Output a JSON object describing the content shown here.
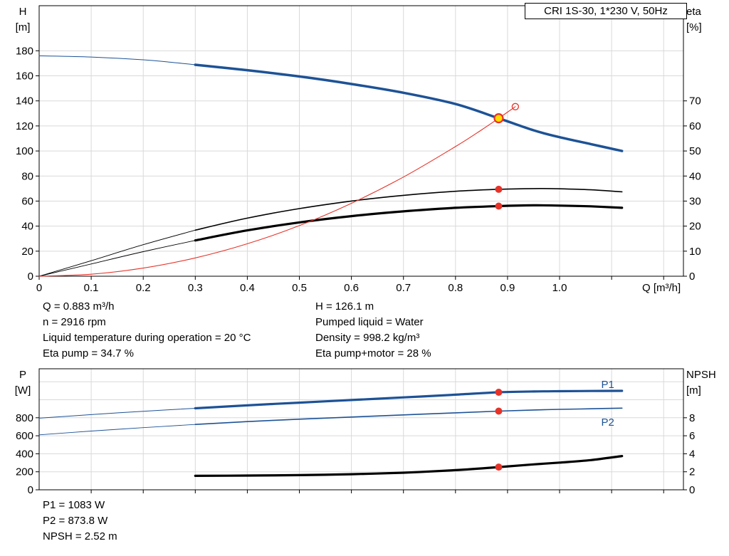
{
  "title_box": {
    "label": "CRI 1S-30, 1*230 V, 50Hz"
  },
  "info_panel": {
    "left": [
      "Q = 0.883 m³/h",
      "n = 2916 rpm",
      "Liquid temperature during operation = 20 °C",
      "Eta pump = 34.7 %"
    ],
    "right": [
      "H = 126.1 m",
      "Pumped liquid = Water",
      "Density = 998.2 kg/m³",
      "Eta pump+motor = 28 %"
    ]
  },
  "results_panel": [
    "P1 = 1083 W",
    "P2 = 873.8 W",
    "NPSH = 2.52 m"
  ],
  "colors": {
    "curve_blue": "#1d5296",
    "curve_black": "#000000",
    "curve_red": "#e63329",
    "grid": "#d9d9d9",
    "frame": "#000000",
    "duty_fill": "#ffdd00"
  },
  "chart_data": [
    {
      "type": "line",
      "name": "qh-performance",
      "x_axis": {
        "label": "Q [m³/h]",
        "min": 0,
        "max": 1.238,
        "ticks": [
          "0",
          "0.1",
          "0.2",
          "0.3",
          "0.4",
          "0.5",
          "0.6",
          "0.7",
          "0.8",
          "0.9",
          "1.0"
        ],
        "grid_extra": [
          1.1,
          1.2
        ]
      },
      "y_left": {
        "label": [
          "H",
          "[m]"
        ],
        "min": 0,
        "max": 216,
        "ticks": [
          0,
          20,
          40,
          60,
          80,
          100,
          120,
          140,
          160,
          180
        ]
      },
      "y_right": {
        "label": [
          "eta",
          "[%]"
        ],
        "min": 0,
        "max": 108,
        "ticks": [
          0,
          10,
          20,
          30,
          40,
          50,
          60,
          70
        ]
      },
      "series": [
        {
          "name": "h-curve-extension",
          "axis": "left",
          "color": "blue",
          "width": 1,
          "points": [
            [
              0,
              176
            ],
            [
              0.1,
              175
            ],
            [
              0.2,
              172.8
            ],
            [
              0.25,
              171
            ],
            [
              0.3,
              168.8
            ]
          ]
        },
        {
          "name": "h-curve",
          "axis": "left",
          "color": "blue",
          "width": 3.5,
          "points": [
            [
              0.3,
              168.8
            ],
            [
              0.4,
              164.5
            ],
            [
              0.5,
              159.5
            ],
            [
              0.6,
              153.5
            ],
            [
              0.7,
              146.5
            ],
            [
              0.8,
              137.5
            ],
            [
              0.883,
              126.1
            ],
            [
              0.95,
              116.5
            ],
            [
              1.0,
              111
            ],
            [
              1.06,
              105.5
            ],
            [
              1.12,
              100
            ]
          ]
        },
        {
          "name": "eta-pump-lead",
          "axis": "right",
          "color": "black",
          "width": 0.9,
          "points": [
            [
              0,
              0
            ],
            [
              0.1,
              6.2
            ],
            [
              0.2,
              12.6
            ],
            [
              0.3,
              18.4
            ]
          ]
        },
        {
          "name": "eta-pump-curve",
          "axis": "right",
          "color": "black",
          "width": 1.6,
          "points": [
            [
              0.3,
              18.4
            ],
            [
              0.4,
              23.2
            ],
            [
              0.5,
              27
            ],
            [
              0.6,
              30
            ],
            [
              0.7,
              32.3
            ],
            [
              0.8,
              33.9
            ],
            [
              0.883,
              34.7
            ],
            [
              0.95,
              35
            ],
            [
              1.0,
              34.9
            ],
            [
              1.06,
              34.5
            ],
            [
              1.12,
              33.7
            ]
          ]
        },
        {
          "name": "eta-total-lead",
          "axis": "right",
          "color": "black",
          "width": 0.9,
          "points": [
            [
              0,
              0
            ],
            [
              0.1,
              4.9
            ],
            [
              0.2,
              9.8
            ],
            [
              0.3,
              14.3
            ]
          ]
        },
        {
          "name": "eta-total-curve",
          "axis": "right",
          "color": "black",
          "width": 3.2,
          "points": [
            [
              0.3,
              14.3
            ],
            [
              0.4,
              18.3
            ],
            [
              0.5,
              21.5
            ],
            [
              0.6,
              24
            ],
            [
              0.7,
              25.9
            ],
            [
              0.8,
              27.3
            ],
            [
              0.883,
              28
            ],
            [
              0.95,
              28.3
            ],
            [
              1.0,
              28.2
            ],
            [
              1.06,
              27.9
            ],
            [
              1.12,
              27.3
            ]
          ]
        },
        {
          "name": "system-curve",
          "axis": "left",
          "color": "red",
          "width": 1.1,
          "points": [
            [
              0,
              0
            ],
            [
              0.1,
              1.6
            ],
            [
              0.2,
              6.5
            ],
            [
              0.3,
              14.6
            ],
            [
              0.4,
              25.9
            ],
            [
              0.5,
              40.4
            ],
            [
              0.6,
              58.2
            ],
            [
              0.7,
              79.2
            ],
            [
              0.8,
              103.5
            ],
            [
              0.85,
              116.8
            ],
            [
              0.883,
              126.1
            ],
            [
              0.915,
              135.4
            ]
          ]
        }
      ],
      "markers": [
        {
          "name": "rated-point",
          "type": "open",
          "axis": "left",
          "q": 0.915,
          "v": 135.4
        },
        {
          "name": "duty-point",
          "type": "duty",
          "axis": "left",
          "q": 0.883,
          "v": 126.1
        },
        {
          "name": "eta-pump-point",
          "type": "dot",
          "axis": "right",
          "q": 0.883,
          "v": 34.7
        },
        {
          "name": "eta-total-point",
          "type": "dot",
          "axis": "right",
          "q": 0.883,
          "v": 28
        }
      ]
    },
    {
      "type": "line",
      "name": "power-npsh",
      "x_axis": {
        "label": "",
        "min": 0,
        "max": 1.238,
        "ticks": [],
        "grid_extra": [
          0.1,
          0.2,
          0.3,
          0.4,
          0.5,
          0.6,
          0.7,
          0.8,
          0.9,
          1.0,
          1.1,
          1.2
        ]
      },
      "y_left": {
        "label": [
          "P",
          "[W]"
        ],
        "min": 0,
        "max": 1344,
        "ticks": [
          0,
          200,
          400,
          600,
          800
        ],
        "grid_extra": [
          1000,
          1200
        ]
      },
      "y_right": {
        "label": [
          "NPSH",
          "[m]"
        ],
        "min": 0,
        "max": 13.44,
        "ticks": [
          0,
          2,
          4,
          6,
          8
        ]
      },
      "series": [
        {
          "name": "p1-lead",
          "axis": "left",
          "color": "blue",
          "width": 1,
          "points": [
            [
              0,
              795
            ],
            [
              0.1,
              835
            ],
            [
              0.2,
              872
            ],
            [
              0.3,
              905
            ]
          ]
        },
        {
          "name": "p1-curve",
          "axis": "left",
          "color": "blue",
          "width": 3.2,
          "points": [
            [
              0.3,
              905
            ],
            [
              0.4,
              938
            ],
            [
              0.5,
              968
            ],
            [
              0.6,
              997
            ],
            [
              0.7,
              1026
            ],
            [
              0.8,
              1056
            ],
            [
              0.883,
              1083
            ],
            [
              0.95,
              1092
            ],
            [
              1.0,
              1095
            ],
            [
              1.06,
              1097
            ],
            [
              1.12,
              1099
            ]
          ]
        },
        {
          "name": "p2-lead",
          "axis": "left",
          "color": "blue",
          "width": 0.9,
          "points": [
            [
              0,
              610
            ],
            [
              0.1,
              652
            ],
            [
              0.2,
              690
            ],
            [
              0.3,
              726
            ]
          ]
        },
        {
          "name": "p2-curve",
          "axis": "left",
          "color": "blue",
          "width": 1.6,
          "points": [
            [
              0.3,
              726
            ],
            [
              0.4,
              757
            ],
            [
              0.5,
              784
            ],
            [
              0.6,
              808
            ],
            [
              0.7,
              832
            ],
            [
              0.8,
              855
            ],
            [
              0.883,
              873.8
            ],
            [
              0.95,
              886
            ],
            [
              1.0,
              893
            ],
            [
              1.06,
              900
            ],
            [
              1.12,
              907
            ]
          ]
        },
        {
          "name": "npsh-curve",
          "axis": "right",
          "color": "black",
          "width": 3.2,
          "points": [
            [
              0.3,
              1.55
            ],
            [
              0.4,
              1.58
            ],
            [
              0.5,
              1.63
            ],
            [
              0.6,
              1.73
            ],
            [
              0.7,
              1.9
            ],
            [
              0.8,
              2.18
            ],
            [
              0.883,
              2.52
            ],
            [
              0.95,
              2.82
            ],
            [
              1.0,
              3.02
            ],
            [
              1.06,
              3.3
            ],
            [
              1.12,
              3.75
            ]
          ]
        }
      ],
      "labels": [
        {
          "name": "p1-label",
          "text": "P1",
          "q": 1.08,
          "v": 1130,
          "axis": "left",
          "color": "blue"
        },
        {
          "name": "p2-label",
          "text": "P2",
          "q": 1.08,
          "v": 710,
          "axis": "left",
          "color": "blue"
        }
      ],
      "markers": [
        {
          "name": "p1-point",
          "type": "dot",
          "axis": "left",
          "q": 0.883,
          "v": 1083
        },
        {
          "name": "p2-point",
          "type": "dot",
          "axis": "left",
          "q": 0.883,
          "v": 873.8
        },
        {
          "name": "npsh-point",
          "type": "dot",
          "axis": "right",
          "q": 0.883,
          "v": 2.52
        }
      ]
    }
  ]
}
